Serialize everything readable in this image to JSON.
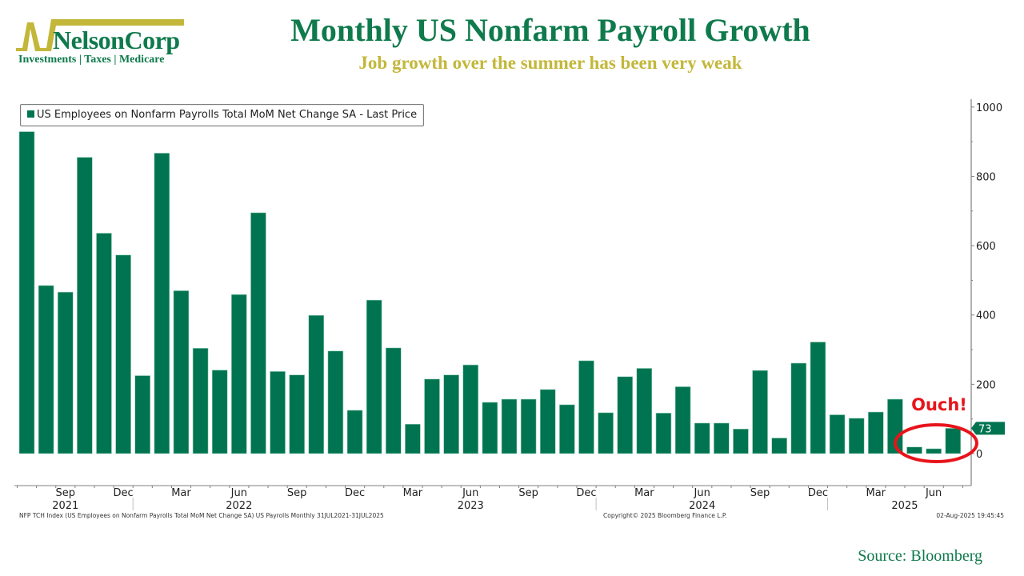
{
  "header": {
    "logo_name": "NelsonCorp",
    "logo_tagline": "Investments | Taxes | Medicare",
    "title": "Monthly US Nonfarm Payroll Growth",
    "subtitle": "Job growth over the summer has been very weak"
  },
  "colors": {
    "bar": "#007450",
    "title": "#0f7a4c",
    "subtitle": "#c3b73a",
    "annotation": "#e8141b",
    "logo_mark": "#c3b73a"
  },
  "annotation": {
    "text": "Ouch!",
    "last_value_label": "73"
  },
  "footer": {
    "index_note": "NFP TCH Index (US Employees on Nonfarm Payrolls Total MoM Net Change SA) US Payrolls  Monthly 31JUL2021-31JUL2025",
    "copyright": "Copyright© 2025 Bloomberg Finance L.P.",
    "timestamp": "02-Aug-2025 19:45:45",
    "source": "Source: Bloomberg"
  },
  "chart_data": {
    "type": "bar",
    "title": "Monthly US Nonfarm Payroll Growth",
    "xlabel": "",
    "ylabel": "",
    "ylim": [
      -90,
      1000
    ],
    "grid": false,
    "legend_position": "top-left",
    "series": [
      {
        "name": "US Employees on Nonfarm Payrolls Total MoM Net Change SA - Last Price",
        "values": [
          929,
          485,
          466,
          855,
          636,
          573,
          225,
          867,
          470,
          304,
          241,
          459,
          695,
          237,
          227,
          399,
          296,
          125,
          443,
          305,
          85,
          215,
          227,
          256,
          148,
          157,
          157,
          185,
          141,
          268,
          118,
          222,
          246,
          117,
          193,
          88,
          88,
          71,
          240,
          45,
          261,
          322,
          112,
          102,
          120,
          157,
          19,
          14,
          73
        ]
      }
    ],
    "categories": [
      "Jul 2021",
      "Aug 2021",
      "Sep 2021",
      "Oct 2021",
      "Nov 2021",
      "Dec 2021",
      "Jan 2022",
      "Feb 2022",
      "Mar 2022",
      "Apr 2022",
      "May 2022",
      "Jun 2022",
      "Jul 2022",
      "Aug 2022",
      "Sep 2022",
      "Oct 2022",
      "Nov 2022",
      "Dec 2022",
      "Jan 2023",
      "Feb 2023",
      "Mar 2023",
      "Apr 2023",
      "May 2023",
      "Jun 2023",
      "Jul 2023",
      "Aug 2023",
      "Sep 2023",
      "Oct 2023",
      "Nov 2023",
      "Dec 2023",
      "Jan 2024",
      "Feb 2024",
      "Mar 2024",
      "Apr 2024",
      "May 2024",
      "Jun 2024",
      "Jul 2024",
      "Aug 2024",
      "Sep 2024",
      "Oct 2024",
      "Nov 2024",
      "Dec 2024",
      "Jan 2025",
      "Feb 2025",
      "Mar 2025",
      "Apr 2025",
      "May 2025",
      "Jun 2025",
      "Jul 2025"
    ],
    "y_ticks": [
      "0",
      "200",
      "400",
      "600",
      "800",
      "1000"
    ],
    "y_tick_values": [
      0,
      200,
      400,
      600,
      800,
      1000
    ],
    "x_month_ticks": [
      {
        "label": "Sep",
        "index": 2
      },
      {
        "label": "Dec",
        "index": 5
      },
      {
        "label": "Mar",
        "index": 8
      },
      {
        "label": "Jun",
        "index": 11
      },
      {
        "label": "Sep",
        "index": 14
      },
      {
        "label": "Dec",
        "index": 17
      },
      {
        "label": "Mar",
        "index": 20
      },
      {
        "label": "Jun",
        "index": 23
      },
      {
        "label": "Sep",
        "index": 26
      },
      {
        "label": "Dec",
        "index": 29
      },
      {
        "label": "Mar",
        "index": 32
      },
      {
        "label": "Jun",
        "index": 35
      },
      {
        "label": "Sep",
        "index": 38
      },
      {
        "label": "Dec",
        "index": 41
      },
      {
        "label": "Mar",
        "index": 44
      },
      {
        "label": "Jun",
        "index": 47
      }
    ],
    "x_year_ticks": [
      {
        "label": "2021",
        "index": 2
      },
      {
        "label": "2022",
        "index": 11
      },
      {
        "label": "2023",
        "index": 23
      },
      {
        "label": "2024",
        "index": 35
      },
      {
        "label": "2025",
        "index": 45.5
      }
    ],
    "year_dividers": [
      5.5,
      29.5,
      41.5
    ]
  }
}
